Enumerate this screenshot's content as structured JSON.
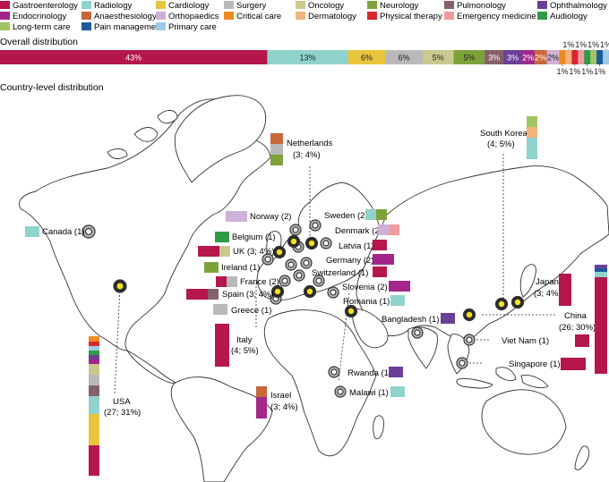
{
  "legend": [
    {
      "label": "Gastroenterology",
      "color": "#b5174b"
    },
    {
      "label": "Radiology",
      "color": "#8fd3cc"
    },
    {
      "label": "Cardiology",
      "color": "#e9c43d"
    },
    {
      "label": "Surgery",
      "color": "#b9b9bb"
    },
    {
      "label": "Oncology",
      "color": "#c9c98f"
    },
    {
      "label": "Neurology",
      "color": "#7ea23b"
    },
    {
      "label": "Pulmonology",
      "color": "#86606a"
    },
    {
      "label": "Ophthalmology",
      "color": "#6b3f98"
    },
    {
      "label": "Endocrinology",
      "color": "#a3268a"
    },
    {
      "label": "Anaesthesiology",
      "color": "#c8673a"
    },
    {
      "label": "Orthopaedics",
      "color": "#cdb1d6"
    },
    {
      "label": "Critical care",
      "color": "#f08a1f"
    },
    {
      "label": "Dermatology",
      "color": "#f3b37c"
    },
    {
      "label": "Physical therapy",
      "color": "#d6262e"
    },
    {
      "label": "Emergency medicine",
      "color": "#f19aa0"
    },
    {
      "label": "Audiology",
      "color": "#2f9a48"
    },
    {
      "label": "Long-term care",
      "color": "#9fc564"
    },
    {
      "label": "Pain management",
      "color": "#1c5a9c"
    },
    {
      "label": "Primary care",
      "color": "#9ecbe9"
    }
  ],
  "overall": {
    "title": "Overall distribution",
    "segments": [
      {
        "specialty": "Gastroenterology",
        "pct": "43%",
        "value": 43,
        "color": "#b5174b",
        "label_color": "#ffffff"
      },
      {
        "specialty": "Radiology",
        "pct": "13%",
        "value": 13,
        "color": "#8fd3cc",
        "label_color": "#231f20"
      },
      {
        "specialty": "Cardiology",
        "pct": "6%",
        "value": 6,
        "color": "#e9c43d",
        "label_color": "#231f20"
      },
      {
        "specialty": "Surgery",
        "pct": "6%",
        "value": 6,
        "color": "#b9b9bb",
        "label_color": "#231f20"
      },
      {
        "specialty": "Oncology",
        "pct": "5%",
        "value": 5,
        "color": "#c9c98f",
        "label_color": "#231f20"
      },
      {
        "specialty": "Neurology",
        "pct": "5%",
        "value": 5,
        "color": "#7ea23b",
        "label_color": "#231f20"
      },
      {
        "specialty": "Pulmonology",
        "pct": "3%",
        "value": 3,
        "color": "#86606a",
        "label_color": "#ffffff"
      },
      {
        "specialty": "Ophthalmology",
        "pct": "3%",
        "value": 3,
        "color": "#6b3f98",
        "label_color": "#ffffff"
      },
      {
        "specialty": "Endocrinology",
        "pct": "2%",
        "value": 2,
        "color": "#a3268a",
        "label_color": "#ffffff"
      },
      {
        "specialty": "Anaesthesiology",
        "pct": "2%",
        "value": 2,
        "color": "#c8673a",
        "label_color": "#ffffff"
      },
      {
        "specialty": "Orthopaedics",
        "pct": "2%",
        "value": 2,
        "color": "#cdb1d6",
        "label_color": "#231f20"
      },
      {
        "specialty": "Critical care",
        "pct": "1%",
        "value": 1,
        "color": "#f08a1f",
        "label_color": "#231f20"
      },
      {
        "specialty": "Dermatology",
        "pct": "1%",
        "value": 1,
        "color": "#f3b37c",
        "label_color": "#231f20"
      },
      {
        "specialty": "Physical therapy",
        "pct": "1%",
        "value": 1,
        "color": "#d6262e",
        "label_color": "#231f20"
      },
      {
        "specialty": "Emergency medicine",
        "pct": "1%",
        "value": 1,
        "color": "#f19aa0",
        "label_color": "#231f20"
      },
      {
        "specialty": "Audiology",
        "pct": "1%",
        "value": 1,
        "color": "#2f9a48",
        "label_color": "#231f20"
      },
      {
        "specialty": "Long-term care",
        "pct": "1%",
        "value": 1,
        "color": "#9fc564",
        "label_color": "#231f20"
      },
      {
        "specialty": "Pain management",
        "pct": "1%",
        "value": 1,
        "color": "#1c5a9c",
        "label_color": "#231f20"
      },
      {
        "specialty": "Primary care",
        "pct": "1%",
        "value": 1,
        "color": "#9ecbe9",
        "label_color": "#231f20"
      }
    ]
  },
  "country_title": "Country-level distribution",
  "countries": [
    {
      "name": "Canada (1)"
    },
    {
      "name": "Norway (2)"
    },
    {
      "name": "Belgium (1)"
    },
    {
      "name": "UK (3; 4%)"
    },
    {
      "name": "Ireland (1)"
    },
    {
      "name": "France (2)"
    },
    {
      "name": "Spain (3; 4%)"
    },
    {
      "name": "Greece (1)"
    },
    {
      "name": "Italy",
      "sub": "(4; 5%)"
    },
    {
      "name": "Netherlands",
      "sub": "(3; 4%)"
    },
    {
      "name": "Sweden (2)"
    },
    {
      "name": "Denmark (2)"
    },
    {
      "name": "Latvia (1)"
    },
    {
      "name": "Germany (2)"
    },
    {
      "name": "Switzerland (1)"
    },
    {
      "name": "Slovenia (2)"
    },
    {
      "name": "Romania (1)"
    },
    {
      "name": "Bangladesh (1)"
    },
    {
      "name": "Rwanda (1)"
    },
    {
      "name": "Malawi (1)"
    },
    {
      "name": "Israel",
      "sub": "(3; 4%)"
    },
    {
      "name": "South Korea",
      "sub": "(4; 5%)"
    },
    {
      "name": "Japan",
      "sub": "(3; 4%)"
    },
    {
      "name": "China",
      "sub": "(26; 30%)"
    },
    {
      "name": "Viet Nam (1)"
    },
    {
      "name": "Singapore (1)"
    },
    {
      "name": "USA",
      "sub": "(27; 31%)"
    }
  ]
}
